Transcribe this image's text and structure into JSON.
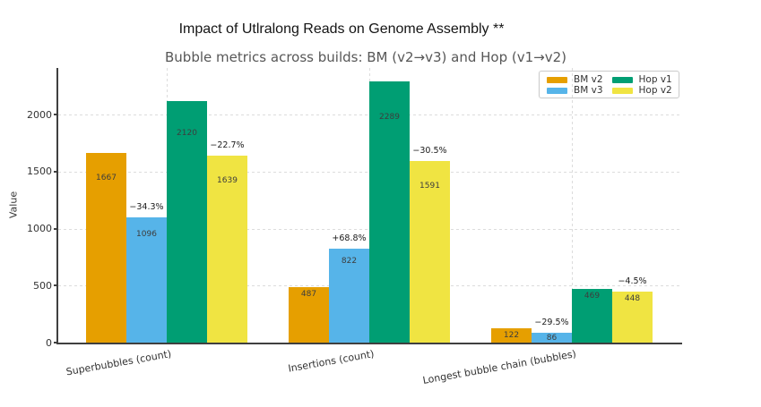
{
  "chart_data": {
    "type": "bar",
    "title": "Impact of Utlralong Reads on Genome Assembly **",
    "subtitle": "Bubble metrics across builds: BM (v2→v3) and Hop (v1→v2)",
    "ylabel": "Value",
    "xlabel": "",
    "categories": [
      "Superbubbles (count)",
      "Insertions (count)",
      "Longest bubble chain (bubbles)"
    ],
    "series": [
      {
        "name": "BM v2",
        "color": "#E69F00",
        "values": [
          1667,
          487,
          122
        ]
      },
      {
        "name": "BM v3",
        "color": "#56B4E9",
        "values": [
          1096,
          822,
          86
        ],
        "pct_change_labels": [
          "−34.3%",
          "+68.8%",
          "−29.5%"
        ]
      },
      {
        "name": "Hop v1",
        "color": "#009E73",
        "values": [
          2120,
          2289,
          469
        ]
      },
      {
        "name": "Hop v2",
        "color": "#F0E442",
        "values": [
          1639,
          1591,
          448
        ],
        "pct_change_labels": [
          "−22.7%",
          "−30.5%",
          "−4.5%"
        ]
      }
    ],
    "yticks": [
      0,
      500,
      1000,
      1500,
      2000
    ],
    "ylim": [
      0,
      2410
    ],
    "grid": {
      "horizontal": true,
      "vertical": true,
      "style": "dashed",
      "color": "#dcdcdc"
    },
    "legend_position": "upper right",
    "legend_columns": 2,
    "axis_color": "#3f3f3f",
    "value_label_color": "#3d3d3d",
    "pct_label_color": "#1a1a1a",
    "title_color": "#141414",
    "subtitle_color": "#575757"
  }
}
